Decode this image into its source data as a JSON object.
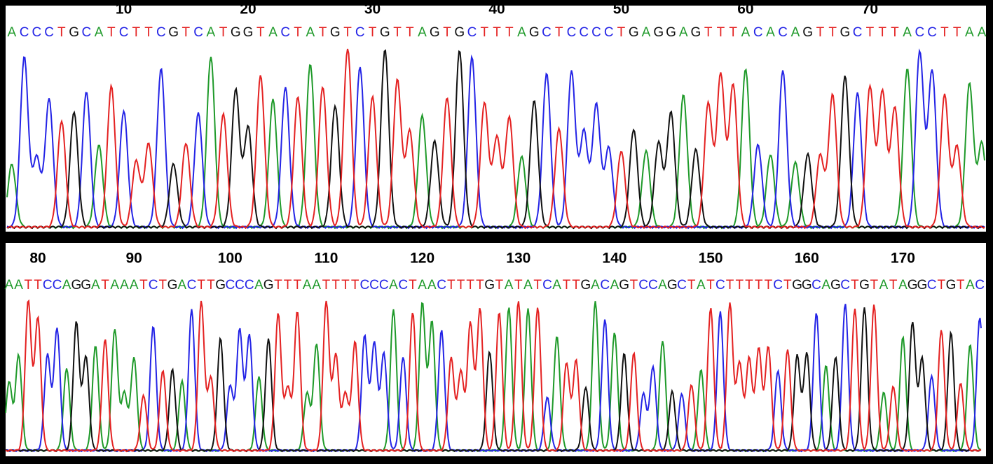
{
  "rows": [
    {
      "ticks": [
        10,
        20,
        30,
        40,
        50,
        60,
        70
      ],
      "sequence": "ACCCTGCATCTTCGTCATGGTACTATGTCTGTTAGTGCTTTAGCTCCCCTGAGGAGTTTACACAGTTGCTTTACCTTAA"
    },
    {
      "ticks": [
        80,
        90,
        100,
        110,
        120,
        130,
        140,
        150,
        160,
        170
      ],
      "sequence": "AATTCCAGGATAAATCTGACTTGCCCAGTTTAATTTTCCCACTAACTTTTGTATATCATTGACAGTCCAGCTATCTTTTTCTGGCAGCTGTATAGGCTGTAC"
    }
  ]
}
